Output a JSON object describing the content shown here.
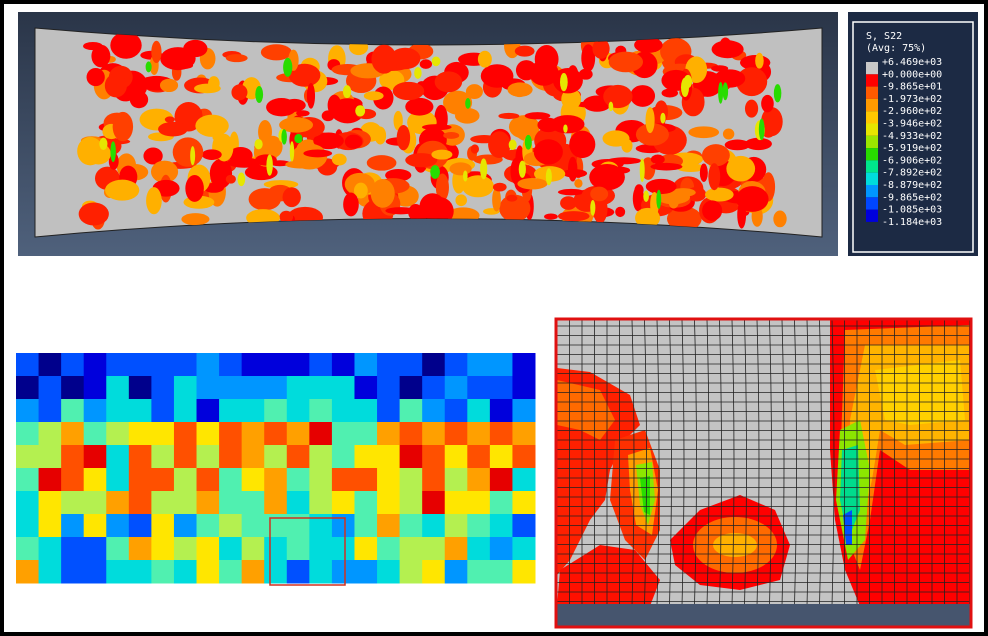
{
  "legend": {
    "title": "S, S22",
    "subtitle": "(Avg: 75%)",
    "labels": [
      "+6.469e+03",
      "+0.000e+00",
      "-9.865e+01",
      "-1.973e+02",
      "-2.960e+02",
      "-3.946e+02",
      "-4.933e+02",
      "-5.919e+02",
      "-6.906e+02",
      "-7.892e+02",
      "-8.879e+02",
      "-9.865e+02",
      "-1.085e+03",
      "-1.184e+03"
    ],
    "colors": [
      "#c8c8c8",
      "#ff0000",
      "#ff5a00",
      "#ff9a00",
      "#ffc800",
      "#e6e600",
      "#9be600",
      "#28dc00",
      "#00e68c",
      "#00dcdc",
      "#0096ff",
      "#0046ff",
      "#0000dc"
    ]
  }
}
